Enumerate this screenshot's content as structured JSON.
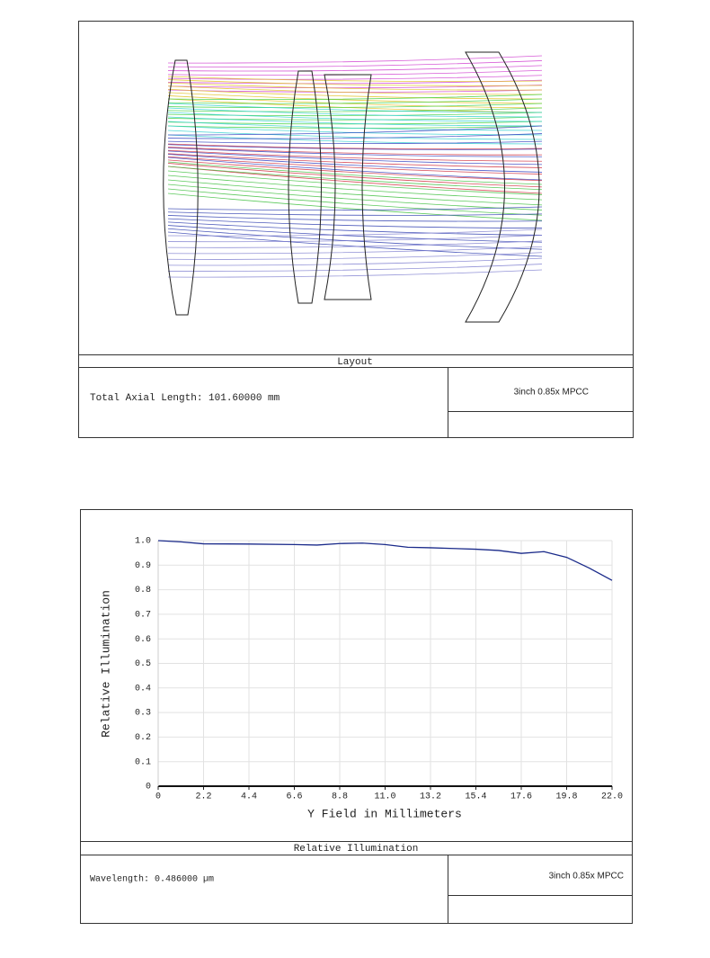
{
  "layout": {
    "title": "Layout",
    "info": "Total Axial Length:  101.60000 mm",
    "label": "3inch 0.85x MPCC"
  },
  "chart_data": {
    "type": "line",
    "title": "Relative Illumination",
    "xlabel": "Y Field in Millimeters",
    "ylabel": "Relative Illumination",
    "x": [
      0,
      1.1,
      2.2,
      4.4,
      6.6,
      7.7,
      8.8,
      9.9,
      11,
      12.1,
      13.2,
      14.3,
      15.4,
      16.5,
      17.6,
      18.7,
      19.8,
      20.9,
      22
    ],
    "values": [
      1.0,
      0.995,
      0.987,
      0.986,
      0.984,
      0.982,
      0.988,
      0.99,
      0.984,
      0.973,
      0.971,
      0.968,
      0.965,
      0.96,
      0.948,
      0.955,
      0.932,
      0.888,
      0.838
    ],
    "color": "#1a2a8a",
    "xlim": [
      0,
      22
    ],
    "ylim": [
      0,
      1
    ],
    "xticks": [
      0,
      2.2,
      4.4,
      6.6,
      8.8,
      {
        "value": 11,
        "label": "11.0"
      },
      13.2,
      15.4,
      17.6,
      19.8,
      {
        "value": 22,
        "label": "22.0"
      }
    ],
    "yticks": [
      0,
      0.1,
      0.2,
      0.3,
      0.4,
      0.5,
      0.6,
      0.7,
      0.8,
      0.9,
      {
        "value": 1,
        "label": "1.0"
      }
    ],
    "grid": true,
    "footer_info": "Wavelength: 0.486000 µm",
    "footer_label": "3inch 0.85x MPCC"
  }
}
